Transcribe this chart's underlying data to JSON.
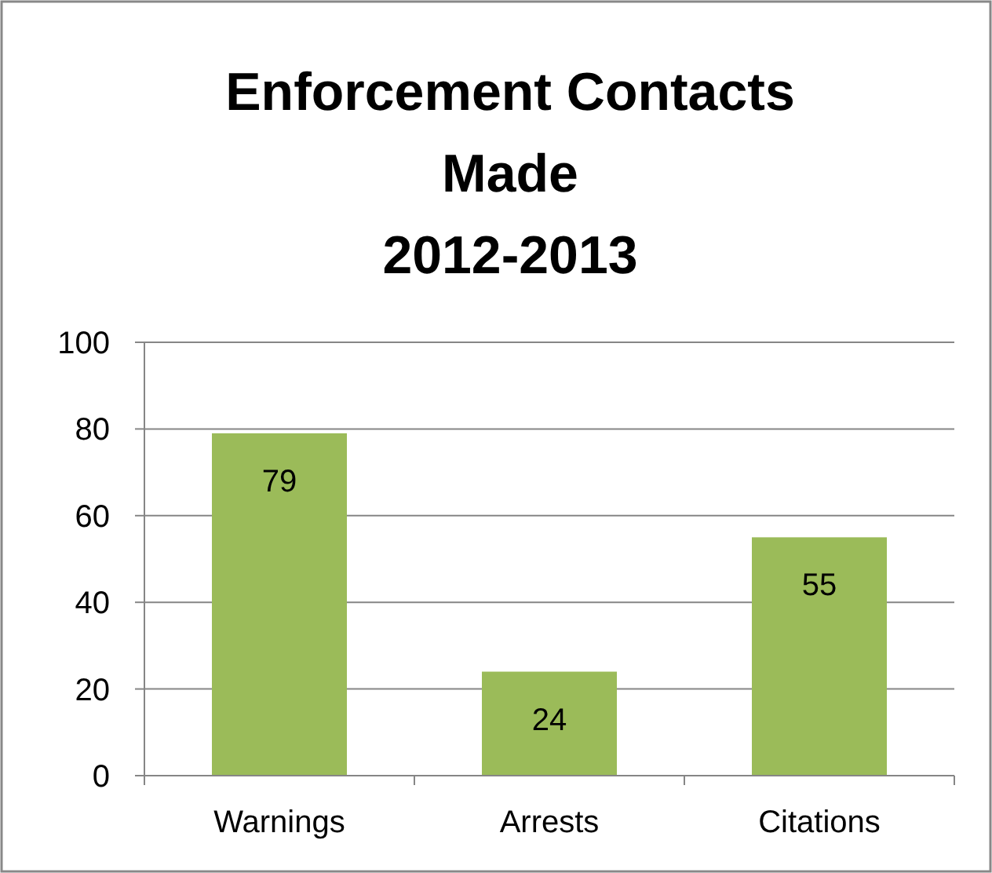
{
  "chart_data": {
    "type": "bar",
    "title": "Enforcement Contacts\nMade\n2012-2013",
    "categories": [
      "Warnings",
      "Arrests",
      "Citations"
    ],
    "values": [
      79,
      24,
      55
    ],
    "color": "#9bbb59",
    "ylim": [
      0,
      100
    ],
    "yticks": [
      0,
      20,
      40,
      60,
      80,
      100
    ],
    "grid": "y",
    "data_labels": true
  }
}
